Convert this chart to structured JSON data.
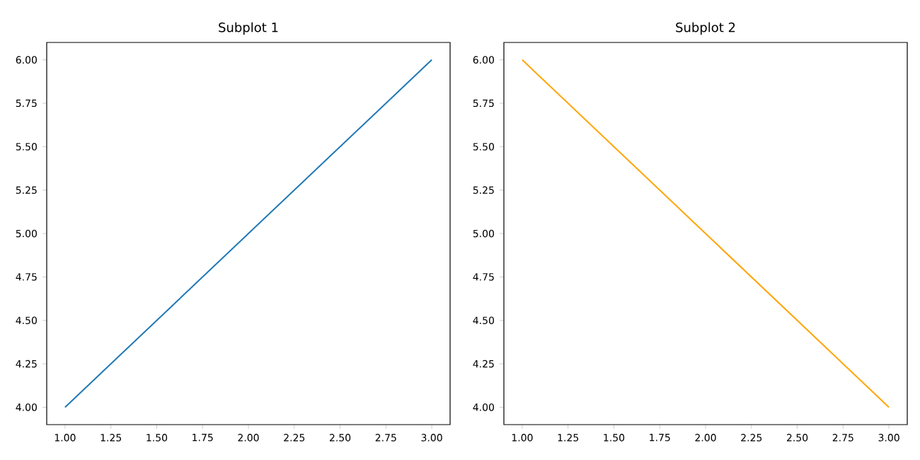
{
  "chart_data": [
    {
      "type": "line",
      "title": "Subplot 1",
      "x": [
        1,
        2,
        3
      ],
      "values": [
        4,
        5,
        6
      ],
      "color": "#1f77b4",
      "xlim": [
        0.9,
        3.1
      ],
      "ylim": [
        3.9,
        6.1
      ],
      "xticks": [
        {
          "value": 1,
          "label": "1.00"
        },
        {
          "value": 1.25,
          "label": "1.25"
        },
        {
          "value": 1.5,
          "label": "1.50"
        },
        {
          "value": 1.75,
          "label": "1.75"
        },
        {
          "value": 2,
          "label": "2.00"
        },
        {
          "value": 2.25,
          "label": "2.25"
        },
        {
          "value": 2.5,
          "label": "2.50"
        },
        {
          "value": 2.75,
          "label": "2.75"
        },
        {
          "value": 3,
          "label": "3.00"
        }
      ],
      "yticks": [
        {
          "value": 4,
          "label": "4.00"
        },
        {
          "value": 4.25,
          "label": "4.25"
        },
        {
          "value": 4.5,
          "label": "4.50"
        },
        {
          "value": 4.75,
          "label": "4.75"
        },
        {
          "value": 5,
          "label": "5.00"
        },
        {
          "value": 5.25,
          "label": "5.25"
        },
        {
          "value": 5.5,
          "label": "5.50"
        },
        {
          "value": 5.75,
          "label": "5.75"
        },
        {
          "value": 6,
          "label": "6.00"
        }
      ]
    },
    {
      "type": "line",
      "title": "Subplot 2",
      "x": [
        1,
        2,
        3
      ],
      "values": [
        6,
        5,
        4
      ],
      "color": "#ffa500",
      "xlim": [
        0.9,
        3.1
      ],
      "ylim": [
        3.9,
        6.1
      ],
      "xticks": [
        {
          "value": 1,
          "label": "1.00"
        },
        {
          "value": 1.25,
          "label": "1.25"
        },
        {
          "value": 1.5,
          "label": "1.50"
        },
        {
          "value": 1.75,
          "label": "1.75"
        },
        {
          "value": 2,
          "label": "2.00"
        },
        {
          "value": 2.25,
          "label": "2.25"
        },
        {
          "value": 2.5,
          "label": "2.50"
        },
        {
          "value": 2.75,
          "label": "2.75"
        },
        {
          "value": 3,
          "label": "3.00"
        }
      ],
      "yticks": [
        {
          "value": 4,
          "label": "4.00"
        },
        {
          "value": 4.25,
          "label": "4.25"
        },
        {
          "value": 4.5,
          "label": "4.50"
        },
        {
          "value": 4.75,
          "label": "4.75"
        },
        {
          "value": 5,
          "label": "5.00"
        },
        {
          "value": 5.25,
          "label": "5.25"
        },
        {
          "value": 5.5,
          "label": "5.50"
        },
        {
          "value": 5.75,
          "label": "5.75"
        },
        {
          "value": 6,
          "label": "6.00"
        }
      ]
    }
  ]
}
